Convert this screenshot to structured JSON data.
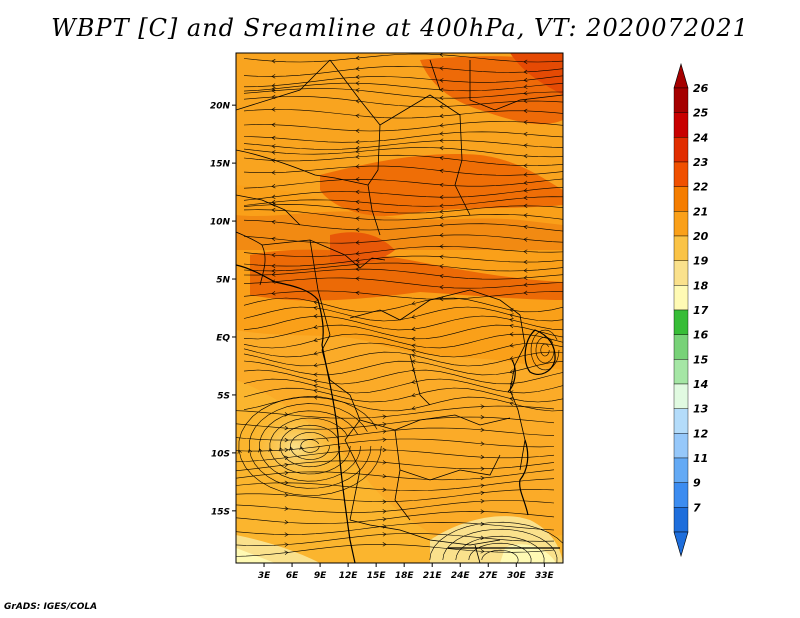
{
  "title": "WBPT [C] and Sreamline at 400hPa, VT: 2020072021",
  "credit": "GrADS: IGES/COLA",
  "map": {
    "lat_labels": [
      {
        "text": "20N",
        "lat": 20
      },
      {
        "text": "15N",
        "lat": 15
      },
      {
        "text": "10N",
        "lat": 10
      },
      {
        "text": "5N",
        "lat": 5
      },
      {
        "text": "EQ",
        "lat": 0
      },
      {
        "text": "5S",
        "lat": -5
      },
      {
        "text": "10S",
        "lat": -10
      },
      {
        "text": "15S",
        "lat": -15
      }
    ],
    "lon_labels": [
      {
        "text": "3E",
        "lon": 3
      },
      {
        "text": "6E",
        "lon": 6
      },
      {
        "text": "9E",
        "lon": 9
      },
      {
        "text": "12E",
        "lon": 12
      },
      {
        "text": "15E",
        "lon": 15
      },
      {
        "text": "18E",
        "lon": 18
      },
      {
        "text": "21E",
        "lon": 21
      },
      {
        "text": "24E",
        "lon": 24
      },
      {
        "text": "27E",
        "lon": 27
      },
      {
        "text": "30E",
        "lon": 30
      },
      {
        "text": "33E",
        "lon": 33
      }
    ],
    "lon_range": [
      0,
      35
    ],
    "lat_range": [
      -19.5,
      24.5
    ]
  },
  "colorbar": {
    "levels": [
      {
        "label": "26",
        "color": "#a50000"
      },
      {
        "label": "25",
        "color": "#c80000"
      },
      {
        "label": "24",
        "color": "#e12d00"
      },
      {
        "label": "23",
        "color": "#f05000"
      },
      {
        "label": "22",
        "color": "#f57d00"
      },
      {
        "label": "21",
        "color": "#faa019"
      },
      {
        "label": "20",
        "color": "#fac346"
      },
      {
        "label": "19",
        "color": "#fae18c"
      },
      {
        "label": "18",
        "color": "#fffab4"
      },
      {
        "label": "17",
        "color": "#37bd37"
      },
      {
        "label": "16",
        "color": "#78d278"
      },
      {
        "label": "15",
        "color": "#a5e6a5"
      },
      {
        "label": "14",
        "color": "#e1fae1"
      },
      {
        "label": "13",
        "color": "#b4dcfa"
      },
      {
        "label": "12",
        "color": "#96c8fa"
      },
      {
        "label": "11",
        "color": "#64aaf5"
      },
      {
        "label": "9",
        "color": "#3c8cf0"
      },
      {
        "label": "7",
        "color": "#1e6edc"
      }
    ],
    "top_cap_color": "#a50000",
    "bottom_cap_color": "#1e6edc"
  }
}
